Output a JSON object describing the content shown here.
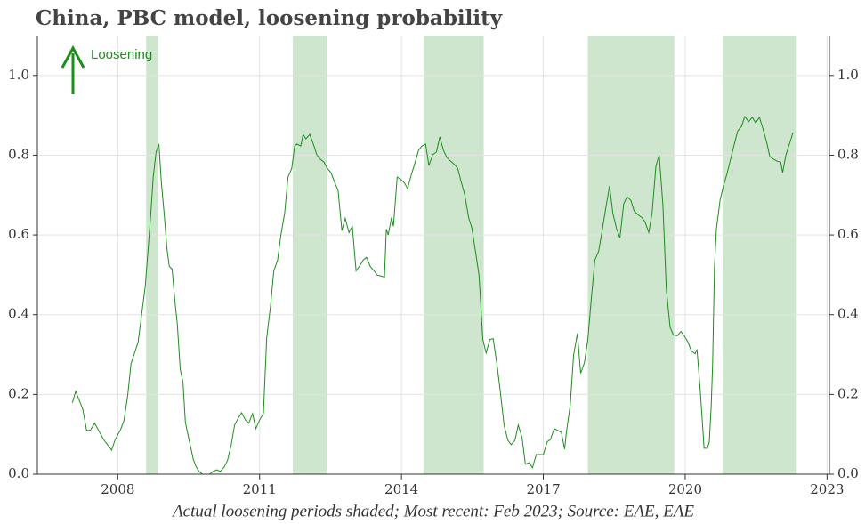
{
  "chart_data": {
    "type": "line",
    "title": "China, PBC model, loosening probability",
    "caption": "Actual loosening periods shaded; Most recent: Feb 2023; Source: EAE, EAE",
    "annotation": "Loosening",
    "xlim": [
      2006.3,
      2023.05
    ],
    "xticks": [
      2008,
      2011,
      2014,
      2017,
      2020,
      2023
    ],
    "ylim": [
      0,
      1.1
    ],
    "yticks": [
      {
        "value": 0,
        "label": "0.0"
      },
      0.2,
      0.4,
      0.6,
      0.8,
      {
        "value": 1,
        "label": "1.0"
      }
    ],
    "grid": true,
    "shade_color": "#cde6cd",
    "shaded": [
      [
        2008.6,
        2008.85
      ],
      [
        2011.7,
        2012.42
      ],
      [
        2014.47,
        2015.74
      ],
      [
        2017.94,
        2019.77
      ],
      [
        2020.79,
        2022.36
      ]
    ],
    "x": [
      2007.04,
      2007.11,
      2007.26,
      2007.34,
      2007.42,
      2007.51,
      2007.7,
      2007.87,
      2007.94,
      2008.06,
      2008.13,
      2008.21,
      2008.28,
      2008.43,
      2008.58,
      2008.64,
      2008.7,
      2008.75,
      2008.81,
      2008.87,
      2008.92,
      2008.98,
      2009.04,
      2009.09,
      2009.15,
      2009.21,
      2009.26,
      2009.32,
      2009.38,
      2009.43,
      2009.49,
      2009.55,
      2009.6,
      2009.66,
      2009.72,
      2009.79,
      2009.94,
      2010.02,
      2010.09,
      2010.17,
      2010.25,
      2010.32,
      2010.4,
      2010.47,
      2010.55,
      2010.62,
      2010.7,
      2010.77,
      2010.85,
      2010.92,
      2011.0,
      2011.08,
      2011.15,
      2011.23,
      2011.3,
      2011.38,
      2011.45,
      2011.53,
      2011.6,
      2011.68,
      2011.74,
      2011.79,
      2011.87,
      2011.92,
      2011.98,
      2012.06,
      2012.13,
      2012.21,
      2012.28,
      2012.36,
      2012.43,
      2012.51,
      2012.58,
      2012.66,
      2012.74,
      2012.81,
      2012.89,
      2012.96,
      2013.04,
      2013.11,
      2013.19,
      2013.26,
      2013.34,
      2013.42,
      2013.49,
      2013.57,
      2013.64,
      2013.68,
      2013.72,
      2013.79,
      2013.83,
      2013.91,
      2013.98,
      2014.06,
      2014.13,
      2014.21,
      2014.28,
      2014.36,
      2014.43,
      2014.51,
      2014.58,
      2014.66,
      2014.74,
      2014.81,
      2014.89,
      2014.96,
      2015.04,
      2015.11,
      2015.19,
      2015.26,
      2015.34,
      2015.42,
      2015.49,
      2015.57,
      2015.64,
      2015.72,
      2015.79,
      2015.87,
      2015.94,
      2016.02,
      2016.09,
      2016.17,
      2016.25,
      2016.32,
      2016.4,
      2016.47,
      2016.55,
      2016.62,
      2016.7,
      2016.77,
      2016.85,
      2016.92,
      2017.0,
      2017.08,
      2017.15,
      2017.23,
      2017.3,
      2017.38,
      2017.45,
      2017.49,
      2017.57,
      2017.64,
      2017.72,
      2017.79,
      2017.87,
      2017.94,
      2018.02,
      2018.09,
      2018.17,
      2018.25,
      2018.32,
      2018.4,
      2018.47,
      2018.55,
      2018.62,
      2018.7,
      2018.77,
      2018.85,
      2018.92,
      2019.0,
      2019.08,
      2019.15,
      2019.23,
      2019.3,
      2019.38,
      2019.45,
      2019.53,
      2019.6,
      2019.68,
      2019.75,
      2019.83,
      2019.91,
      2019.98,
      2020.06,
      2020.13,
      2020.21,
      2020.25,
      2020.32,
      2020.4,
      2020.47,
      2020.51,
      2020.55,
      2020.58,
      2020.62,
      2020.66,
      2020.74,
      2020.81,
      2020.89,
      2020.96,
      2021.04,
      2021.11,
      2021.19,
      2021.26,
      2021.34,
      2021.42,
      2021.49,
      2021.57,
      2021.64,
      2021.72,
      2021.79,
      2021.87,
      2021.94,
      2022.02,
      2022.06,
      2022.13,
      2022.21,
      2022.28
    ],
    "series": [
      {
        "color": "#1e8c1e",
        "values": [
          0.179,
          0.208,
          0.163,
          0.11,
          0.11,
          0.128,
          0.087,
          0.06,
          0.085,
          0.112,
          0.134,
          0.197,
          0.277,
          0.331,
          0.47,
          0.561,
          0.655,
          0.745,
          0.808,
          0.828,
          0.734,
          0.655,
          0.566,
          0.521,
          0.514,
          0.432,
          0.376,
          0.264,
          0.23,
          0.13,
          0.096,
          0.063,
          0.036,
          0.018,
          0.007,
          0,
          0,
          0.007,
          0.011,
          0.007,
          0.018,
          0.034,
          0.074,
          0.123,
          0.141,
          0.154,
          0.136,
          0.128,
          0.152,
          0.114,
          0.136,
          0.152,
          0.342,
          0.421,
          0.51,
          0.537,
          0.6,
          0.655,
          0.745,
          0.767,
          0.823,
          0.828,
          0.823,
          0.852,
          0.841,
          0.852,
          0.83,
          0.801,
          0.79,
          0.783,
          0.767,
          0.756,
          0.734,
          0.711,
          0.611,
          0.642,
          0.606,
          0.622,
          0.51,
          0.521,
          0.537,
          0.544,
          0.521,
          0.51,
          0.499,
          0.497,
          0.494,
          0.615,
          0.6,
          0.644,
          0.622,
          0.745,
          0.74,
          0.731,
          0.716,
          0.752,
          0.778,
          0.812,
          0.823,
          0.828,
          0.774,
          0.801,
          0.808,
          0.846,
          0.812,
          0.794,
          0.785,
          0.778,
          0.767,
          0.734,
          0.7,
          0.644,
          0.617,
          0.555,
          0.499,
          0.338,
          0.304,
          0.338,
          0.34,
          0.275,
          0.208,
          0.123,
          0.085,
          0.074,
          0.085,
          0.123,
          0.092,
          0.025,
          0.029,
          0.016,
          0.049,
          0.049,
          0.049,
          0.081,
          0.087,
          0.114,
          0.11,
          0.105,
          0.063,
          0.107,
          0.174,
          0.298,
          0.353,
          0.253,
          0.28,
          0.336,
          0.447,
          0.537,
          0.559,
          0.615,
          0.667,
          0.723,
          0.655,
          0.615,
          0.593,
          0.678,
          0.696,
          0.687,
          0.66,
          0.651,
          0.644,
          0.633,
          0.606,
          0.655,
          0.772,
          0.801,
          0.673,
          0.465,
          0.369,
          0.349,
          0.347,
          0.358,
          0.347,
          0.331,
          0.309,
          0.302,
          0.313,
          0.208,
          0.065,
          0.065,
          0.081,
          0.17,
          0.275,
          0.521,
          0.615,
          0.689,
          0.723,
          0.756,
          0.79,
          0.828,
          0.861,
          0.872,
          0.897,
          0.884,
          0.895,
          0.881,
          0.895,
          0.868,
          0.834,
          0.796,
          0.79,
          0.785,
          0.783,
          0.756,
          0.801,
          0.83,
          0.857
        ]
      }
    ]
  }
}
